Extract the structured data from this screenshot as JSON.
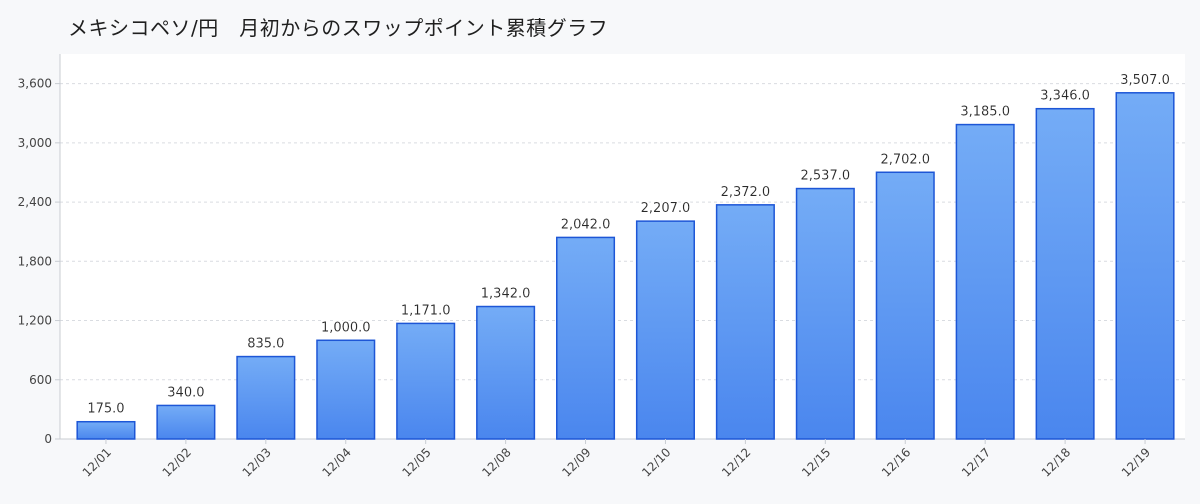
{
  "header": {
    "title": "メキシコペソ/円　月初からのスワップポイント累積グラフ"
  },
  "chart_data": {
    "type": "bar",
    "categories": [
      "12/01",
      "12/02",
      "12/03",
      "12/04",
      "12/05",
      "12/08",
      "12/09",
      "12/10",
      "12/12",
      "12/15",
      "12/16",
      "12/17",
      "12/18",
      "12/19"
    ],
    "values": [
      175,
      340,
      835,
      1000,
      1171,
      1342,
      2042,
      2207,
      2372,
      2537,
      2702,
      3185,
      3346,
      3507
    ],
    "value_labels": [
      "175.0",
      "340.0",
      "835.0",
      "1,000.0",
      "1,171.0",
      "1,342.0",
      "2,042.0",
      "2,207.0",
      "2,372.0",
      "2,537.0",
      "2,702.0",
      "3,185.0",
      "3,346.0",
      "3,507.0"
    ],
    "yticks": [
      0,
      600,
      1200,
      1800,
      2400,
      3000,
      3600
    ],
    "ytick_labels": [
      "0",
      "600",
      "1,200",
      "1,800",
      "2,400",
      "3,000",
      "3,600"
    ],
    "ylim": [
      0,
      3900
    ],
    "grid": true,
    "legend": "none",
    "colors": {
      "bar_top": "#74acf6",
      "bar_bottom": "#4a86ee",
      "bar_stroke": "#1d56d6",
      "grid": "#d9dce1",
      "axis": "#c8ccd2",
      "tick_text": "#444444",
      "label_text": "#2a2a2a"
    }
  }
}
